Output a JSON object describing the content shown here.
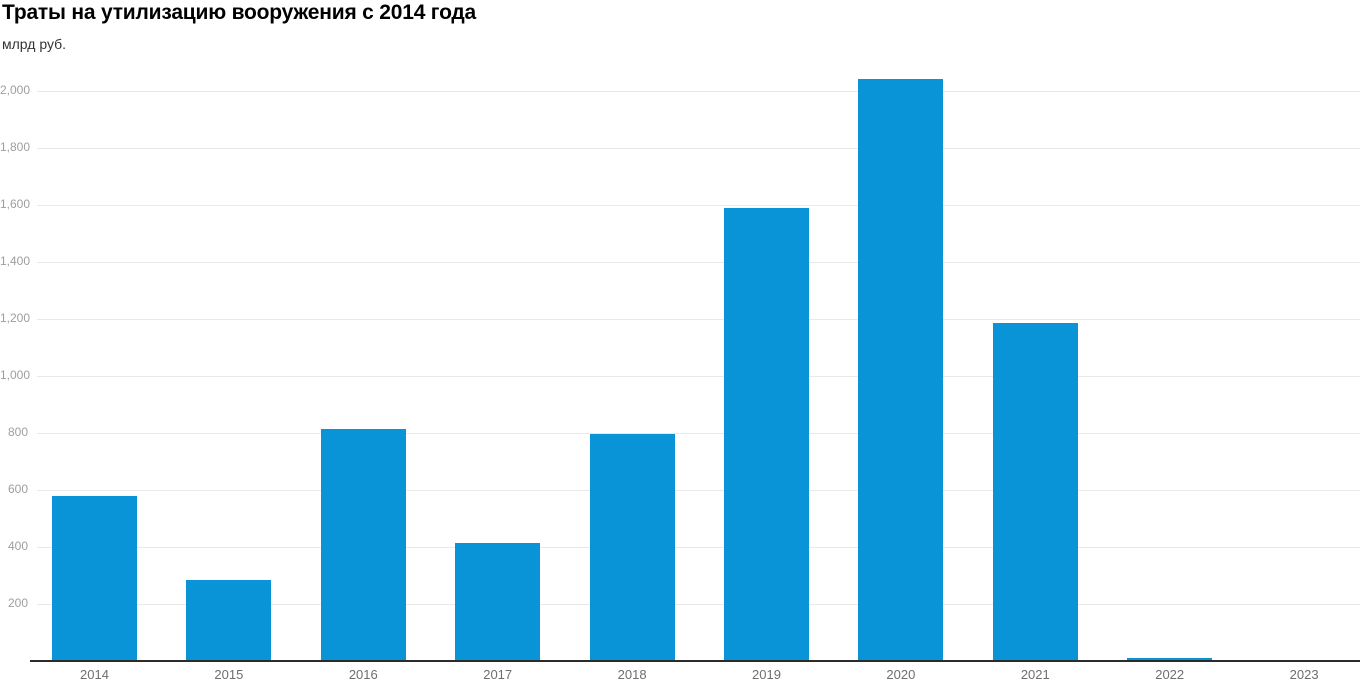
{
  "header": {
    "title": "Траты на утилизацию вооружения с 2014 года",
    "unit_label": "млрд руб."
  },
  "colors": {
    "bar": "#0994d8",
    "gridline": "#e9e9e9",
    "axis": "#2b2b2b",
    "y_tick_label": "#9e9e9e",
    "x_tick_label": "#6e6e6e",
    "title": "#000000",
    "subtitle": "#333333",
    "background": "#ffffff"
  },
  "chart_data": {
    "type": "bar",
    "title": "Траты на утилизацию вооружения с 2014 года",
    "xlabel": "",
    "ylabel": "млрд руб.",
    "categories": [
      "2014",
      "2015",
      "2016",
      "2017",
      "2018",
      "2019",
      "2020",
      "2021",
      "2022",
      "2023"
    ],
    "values": [
      580,
      285,
      815,
      413,
      795,
      1590,
      2043,
      1186,
      12,
      0
    ],
    "ylim": [
      0,
      2100
    ],
    "ytick_values": [
      200,
      400,
      600,
      800,
      1000,
      1200,
      1400,
      1600,
      1800,
      2000
    ],
    "ytick_labels": [
      "200",
      "400",
      "600",
      "800",
      "1,000",
      "1,200",
      "1,400",
      "1,600",
      "1,800",
      "2,000"
    ],
    "grid": true,
    "legend": false,
    "series_color": "#0994d8"
  }
}
